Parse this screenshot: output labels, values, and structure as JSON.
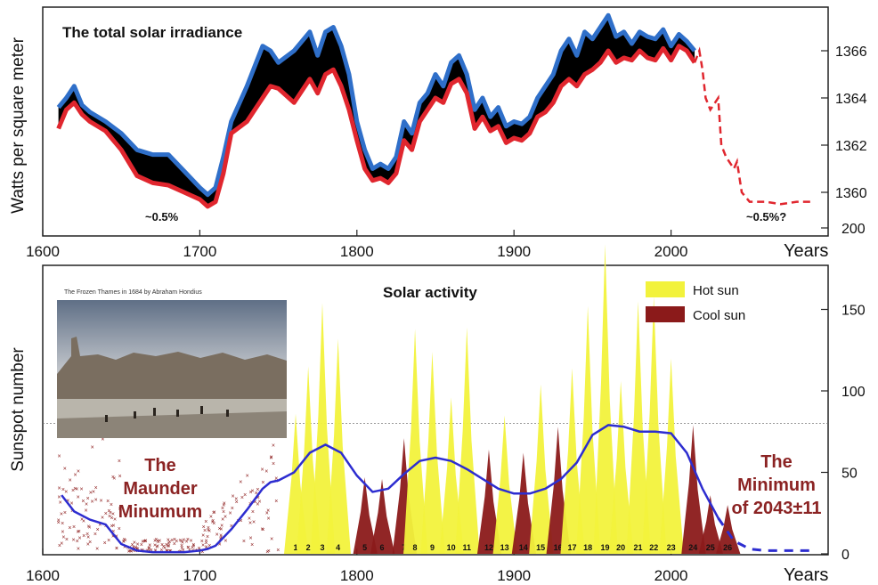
{
  "chart_data": [
    {
      "type": "line",
      "title": "The total solar irradiance",
      "xlabel": "Years",
      "ylabel": "Watts per square meter",
      "xlim": [
        1600,
        2100
      ],
      "ylim": [
        1358.5,
        1367.5
      ],
      "x_ticks": [
        1600,
        1700,
        1800,
        1900,
        2000
      ],
      "y_ticks": [
        1360,
        1362,
        1364,
        1366
      ],
      "annotations": [
        "~0.5%",
        "~0.5%?"
      ],
      "colors": {
        "upper": "#2f6fc9",
        "lower": "#e0262e",
        "band": "#000000"
      },
      "series": [
        {
          "role": "reconstruction band (blue upper / black fill / red lower)",
          "x": [
            1610,
            1615,
            1620,
            1625,
            1630,
            1640,
            1650,
            1660,
            1670,
            1680,
            1690,
            1700,
            1705,
            1710,
            1715,
            1720,
            1730,
            1740,
            1745,
            1750,
            1760,
            1770,
            1775,
            1780,
            1785,
            1790,
            1795,
            1800,
            1805,
            1810,
            1815,
            1820,
            1825,
            1830,
            1835,
            1840,
            1845,
            1850,
            1855,
            1860,
            1865,
            1870,
            1875,
            1880,
            1885,
            1890,
            1895,
            1900,
            1905,
            1910,
            1915,
            1920,
            1925,
            1930,
            1935,
            1940,
            1945,
            1950,
            1955,
            1960,
            1965,
            1970,
            1975,
            1980,
            1985,
            1990,
            1995,
            2000,
            2005,
            2010,
            2015
          ],
          "upper": [
            1363.6,
            1364.0,
            1364.5,
            1363.7,
            1363.4,
            1363.0,
            1362.5,
            1361.8,
            1361.6,
            1361.6,
            1360.9,
            1360.2,
            1359.9,
            1360.2,
            1361.5,
            1363.0,
            1364.5,
            1366.2,
            1366.0,
            1365.5,
            1366.0,
            1366.8,
            1365.8,
            1366.8,
            1367.0,
            1366.2,
            1365.0,
            1363.0,
            1361.8,
            1361.0,
            1361.2,
            1361.0,
            1361.5,
            1363.0,
            1362.5,
            1363.8,
            1364.2,
            1365.0,
            1364.5,
            1365.5,
            1365.8,
            1365.0,
            1363.5,
            1364.0,
            1363.2,
            1363.6,
            1362.8,
            1363.0,
            1362.9,
            1363.2,
            1364.0,
            1364.5,
            1365.0,
            1366.0,
            1366.5,
            1365.8,
            1366.8,
            1366.5,
            1367.0,
            1367.5,
            1366.6,
            1366.8,
            1366.3,
            1366.8,
            1366.6,
            1366.5,
            1366.9,
            1366.2,
            1366.7,
            1366.4,
            1366.0
          ],
          "lower": [
            1362.7,
            1363.5,
            1363.8,
            1363.3,
            1363.0,
            1362.6,
            1361.8,
            1360.7,
            1360.4,
            1360.3,
            1360.0,
            1359.7,
            1359.4,
            1359.6,
            1360.8,
            1362.5,
            1363.0,
            1364.0,
            1364.5,
            1364.4,
            1363.8,
            1364.8,
            1364.2,
            1365.0,
            1365.2,
            1364.5,
            1363.5,
            1362.2,
            1361.0,
            1360.5,
            1360.6,
            1360.4,
            1360.8,
            1362.2,
            1361.8,
            1363.0,
            1363.5,
            1364.0,
            1363.8,
            1364.6,
            1364.8,
            1364.2,
            1362.7,
            1363.2,
            1362.6,
            1362.8,
            1362.1,
            1362.3,
            1362.2,
            1362.5,
            1363.2,
            1363.4,
            1363.8,
            1364.5,
            1364.8,
            1364.5,
            1365.0,
            1365.2,
            1365.5,
            1366.0,
            1365.5,
            1365.7,
            1365.6,
            1366.0,
            1365.7,
            1365.6,
            1366.1,
            1365.6,
            1366.2,
            1366.0,
            1365.5
          ]
        },
        {
          "role": "forecast (dashed red)",
          "x": [
            2015,
            2018,
            2020,
            2022,
            2025,
            2030,
            2032,
            2035,
            2040,
            2042,
            2045,
            2050,
            2060,
            2070,
            2080,
            2090
          ],
          "values": [
            1365.5,
            1366.0,
            1365.2,
            1364.0,
            1363.5,
            1364.0,
            1362.0,
            1361.5,
            1361.0,
            1361.3,
            1360.0,
            1359.6,
            1359.6,
            1359.5,
            1359.6,
            1359.6
          ]
        }
      ]
    },
    {
      "type": "area",
      "title": "Solar activity",
      "xlabel": "Years",
      "ylabel": "Sunspot number",
      "xlim": [
        1600,
        2100
      ],
      "ylim": [
        0,
        210
      ],
      "x_ticks": [
        1600,
        1700,
        1800,
        1900,
        2000
      ],
      "y_ticks": [
        0,
        50,
        100,
        150,
        200
      ],
      "reference_line_y": 80,
      "legend": [
        {
          "label": "Hot sun",
          "color": "#f2f23c"
        },
        {
          "label": "Cool sun",
          "color": "#8b1a1a"
        }
      ],
      "annotations": {
        "maunder": [
          "The",
          "Maunder",
          "Minumum"
        ],
        "minimum": [
          "The",
          "Minimum",
          "of 2043±11"
        ]
      },
      "inset_caption": "The Frozen Thames in 1684 by Abraham Hondius",
      "cycles": [
        {
          "n": "1",
          "year": 1761,
          "peak": 86,
          "kind": "hot"
        },
        {
          "n": "2",
          "year": 1769,
          "peak": 115,
          "kind": "hot"
        },
        {
          "n": "3",
          "year": 1778,
          "peak": 154,
          "kind": "hot"
        },
        {
          "n": "4",
          "year": 1788,
          "peak": 132,
          "kind": "hot"
        },
        {
          "n": "5",
          "year": 1805,
          "peak": 47,
          "kind": "cool"
        },
        {
          "n": "6",
          "year": 1816,
          "peak": 46,
          "kind": "cool"
        },
        {
          "n": "7",
          "year": 1830,
          "peak": 71,
          "kind": "cool"
        },
        {
          "n": "8",
          "year": 1837,
          "peak": 138,
          "kind": "hot"
        },
        {
          "n": "9",
          "year": 1848,
          "peak": 124,
          "kind": "hot"
        },
        {
          "n": "10",
          "year": 1860,
          "peak": 96,
          "kind": "hot"
        },
        {
          "n": "11",
          "year": 1870,
          "peak": 139,
          "kind": "hot"
        },
        {
          "n": "12",
          "year": 1884,
          "peak": 64,
          "kind": "cool"
        },
        {
          "n": "13",
          "year": 1894,
          "peak": 85,
          "kind": "hot"
        },
        {
          "n": "14",
          "year": 1906,
          "peak": 62,
          "kind": "cool"
        },
        {
          "n": "15",
          "year": 1917,
          "peak": 104,
          "kind": "hot"
        },
        {
          "n": "16",
          "year": 1928,
          "peak": 78,
          "kind": "cool"
        },
        {
          "n": "17",
          "year": 1937,
          "peak": 114,
          "kind": "hot"
        },
        {
          "n": "18",
          "year": 1947,
          "peak": 152,
          "kind": "hot"
        },
        {
          "n": "19",
          "year": 1958,
          "peak": 190,
          "kind": "hot"
        },
        {
          "n": "20",
          "year": 1968,
          "peak": 106,
          "kind": "hot"
        },
        {
          "n": "21",
          "year": 1979,
          "peak": 155,
          "kind": "hot"
        },
        {
          "n": "22",
          "year": 1989,
          "peak": 158,
          "kind": "hot"
        },
        {
          "n": "23",
          "year": 2000,
          "peak": 120,
          "kind": "hot"
        },
        {
          "n": "24",
          "year": 2014,
          "peak": 79,
          "kind": "cool"
        },
        {
          "n": "25",
          "year": 2025,
          "peak": 36,
          "kind": "cool"
        },
        {
          "n": "26",
          "year": 2036,
          "peak": 30,
          "kind": "cool"
        }
      ],
      "smoothed": {
        "x": [
          1612,
          1620,
          1630,
          1640,
          1650,
          1660,
          1670,
          1680,
          1690,
          1700,
          1705,
          1710,
          1720,
          1730,
          1740,
          1745,
          1750,
          1760,
          1770,
          1780,
          1790,
          1800,
          1810,
          1820,
          1830,
          1840,
          1850,
          1860,
          1870,
          1880,
          1890,
          1900,
          1910,
          1920,
          1930,
          1940,
          1950,
          1960,
          1970,
          1980,
          1990,
          2000,
          2010,
          2020,
          2030,
          2040,
          2050,
          2060,
          2070,
          2080,
          2090
        ],
        "values": [
          36,
          26,
          21,
          18,
          6,
          2,
          1,
          1,
          1,
          2,
          3,
          5,
          15,
          27,
          40,
          44,
          45,
          50,
          62,
          67,
          62,
          48,
          38,
          40,
          49,
          57,
          59,
          57,
          52,
          46,
          40,
          37,
          37,
          40,
          46,
          56,
          73,
          79,
          78,
          75,
          75,
          74,
          62,
          40,
          22,
          8,
          3,
          2,
          2,
          2,
          2
        ]
      },
      "historical_scatter_years": [
        1610,
        1750
      ]
    }
  ],
  "labels": {
    "top_title": "The total solar irradiance",
    "top_ylabel": "Watts per square meter",
    "top_xlabel": "Years",
    "top_ann_left": "~0.5%",
    "top_ann_right": "~0.5%?",
    "bot_title": "Solar activity",
    "bot_ylabel": "Sunspot number",
    "bot_xlabel": "Years",
    "legend_hot": "Hot sun",
    "legend_cool": "Cool sun",
    "inset_caption": "The Frozen Thames in 1684 by Abraham Hondius",
    "maunder_1": "The",
    "maunder_2": "Maunder",
    "maunder_3": "Minumum",
    "minimum_1": "The",
    "minimum_2": "Minimum",
    "minimum_3": "of 2043±11"
  }
}
